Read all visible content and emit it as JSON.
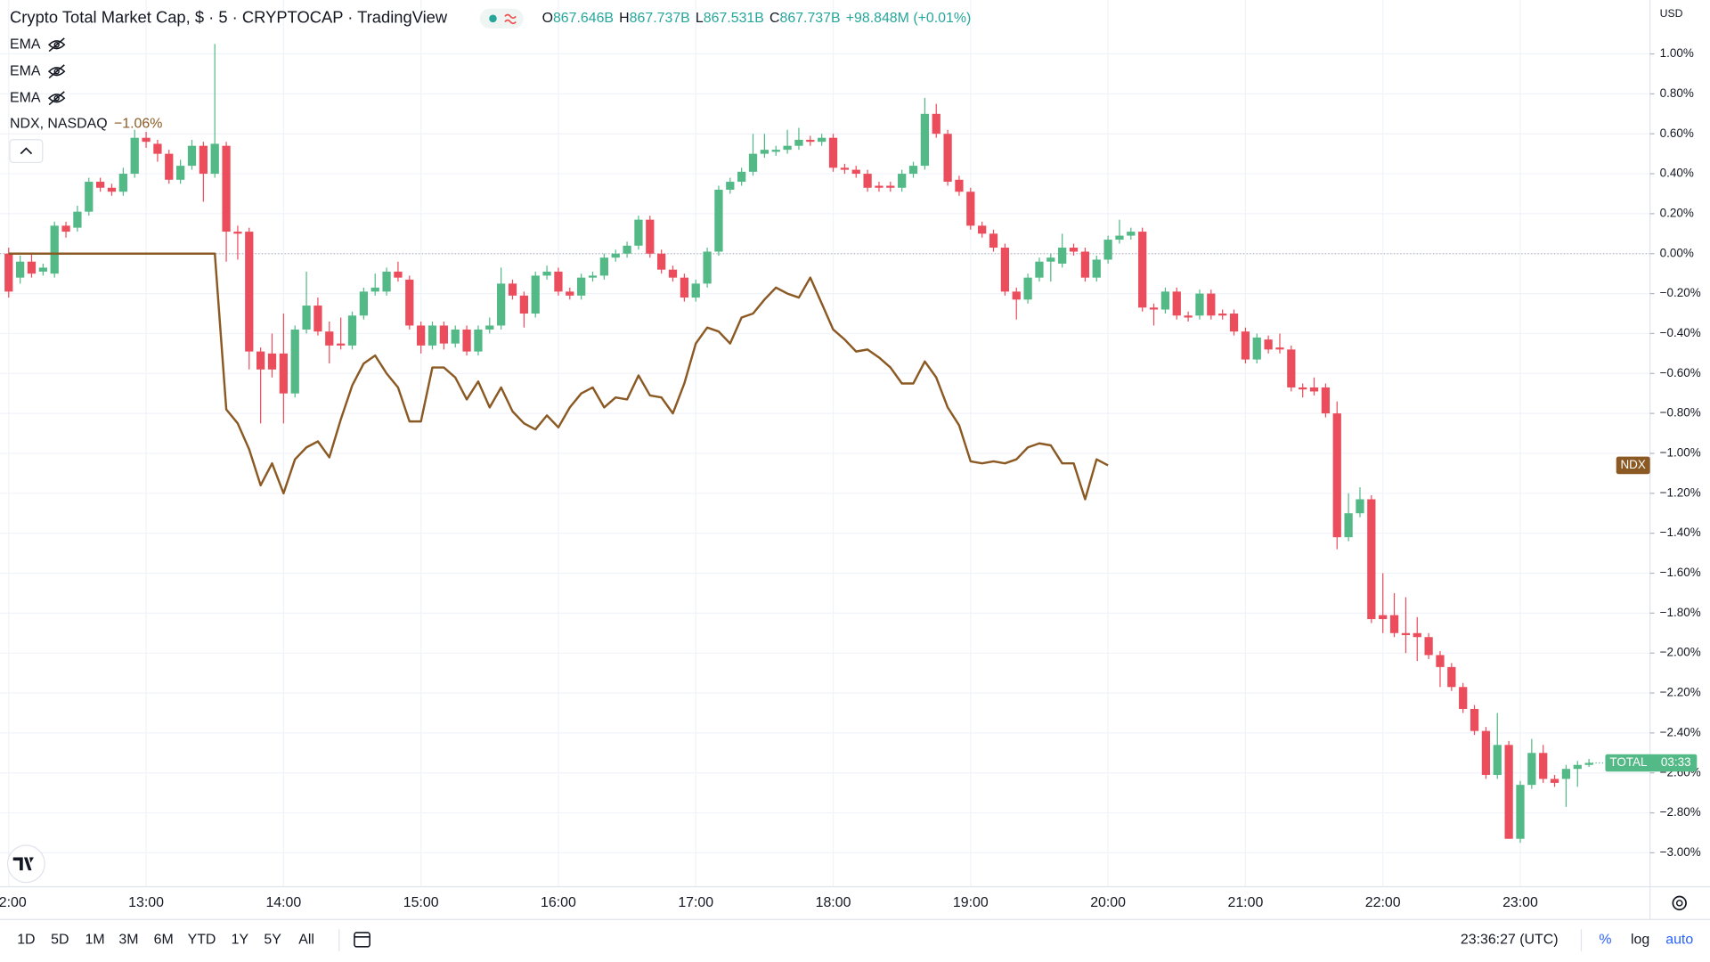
{
  "header": {
    "title": "Crypto Total Market Cap, $ · 5 · CRYPTOCAP · TradingView",
    "ohlc": [
      {
        "label": "O",
        "value": "867.646B"
      },
      {
        "label": "H",
        "value": "867.737B"
      },
      {
        "label": "L",
        "value": "867.531B"
      },
      {
        "label": "C",
        "value": "867.737B"
      }
    ],
    "change": "+98.848M (+0.01%)"
  },
  "indicators": [
    "EMA",
    "EMA",
    "EMA"
  ],
  "compare": {
    "name": "NDX, NASDAQ",
    "change": "−1.06%"
  },
  "chart_data": {
    "type": "candlestick",
    "name": "TOTAL",
    "countdown": "03:33",
    "currency": "USD",
    "up_color": "#53b987",
    "down_color": "#eb4d5c",
    "grid": true,
    "open": [
      0,
      -0.12,
      -0.04,
      -0.09,
      -0.1,
      0.14,
      0.13,
      0.21,
      0.36,
      0.33,
      0.31,
      0.4,
      0.58,
      0.55,
      0.5,
      0.37,
      0.44,
      0.54,
      0.4,
      0.54,
      0.11,
      0.11,
      -0.49,
      -0.5,
      -0.5,
      -0.7,
      -0.38,
      -0.26,
      -0.39,
      -0.45,
      -0.46,
      -0.31,
      -0.19,
      -0.19,
      -0.09,
      -0.13,
      -0.36,
      -0.46,
      -0.36,
      -0.45,
      -0.38,
      -0.49,
      -0.38,
      -0.36,
      -0.15,
      -0.21,
      -0.3,
      -0.11,
      -0.09,
      -0.19,
      -0.21,
      -0.12,
      -0.11,
      -0.02,
      0.0,
      0.04,
      0.17,
      0.0,
      -0.08,
      -0.12,
      -0.22,
      -0.15,
      0.01,
      0.32,
      0.36,
      0.41,
      0.5,
      0.51,
      0.52,
      0.54,
      0.57,
      0.56,
      0.58,
      0.43,
      0.42,
      0.4,
      0.34,
      0.34,
      0.33,
      0.4,
      0.44,
      0.7,
      0.6,
      0.37,
      0.31,
      0.14,
      0.1,
      0.03,
      -0.19,
      -0.23,
      -0.12,
      -0.04,
      -0.05,
      0.03,
      0.01,
      -0.12,
      -0.03,
      0.07,
      0.09,
      0.11,
      -0.27,
      -0.28,
      -0.19,
      -0.31,
      -0.31,
      -0.2,
      -0.3,
      -0.3,
      -0.39,
      -0.53,
      -0.43,
      -0.47,
      -0.48,
      -0.67,
      -0.67,
      -0.67,
      -0.8,
      -1.42,
      -1.3,
      -1.23,
      -1.81,
      -1.81,
      -1.9,
      -1.9,
      -1.92,
      -2.01,
      -2.07,
      -2.17,
      -2.28,
      -2.39,
      -2.61,
      -2.46,
      -2.93,
      -2.66,
      -2.5,
      -2.63,
      -2.63,
      -2.58,
      -2.56
    ],
    "high": [
      0.03,
      -0.01,
      0.0,
      -0.05,
      0.16,
      0.16,
      0.24,
      0.38,
      0.38,
      0.35,
      0.43,
      0.62,
      0.61,
      0.57,
      0.52,
      0.47,
      0.57,
      0.56,
      1.05,
      0.56,
      0.14,
      0.13,
      -0.47,
      -0.4,
      -0.3,
      -0.36,
      -0.09,
      -0.22,
      -0.34,
      -0.32,
      -0.29,
      -0.17,
      -0.1,
      -0.07,
      -0.04,
      -0.11,
      -0.34,
      -0.34,
      -0.34,
      -0.36,
      -0.36,
      -0.36,
      -0.32,
      -0.07,
      -0.13,
      -0.19,
      -0.09,
      -0.06,
      -0.07,
      -0.17,
      -0.1,
      -0.09,
      0.0,
      0.02,
      0.06,
      0.19,
      0.19,
      0.02,
      -0.06,
      -0.1,
      -0.13,
      0.03,
      0.34,
      0.38,
      0.43,
      0.6,
      0.6,
      0.54,
      0.62,
      0.63,
      0.59,
      0.6,
      0.6,
      0.45,
      0.44,
      0.42,
      0.36,
      0.36,
      0.42,
      0.46,
      0.78,
      0.75,
      0.62,
      0.39,
      0.33,
      0.16,
      0.12,
      0.05,
      -0.17,
      -0.1,
      -0.02,
      0.0,
      0.1,
      0.05,
      0.03,
      -0.01,
      0.09,
      0.17,
      0.13,
      0.13,
      -0.25,
      -0.17,
      -0.17,
      -0.29,
      -0.18,
      -0.18,
      -0.28,
      -0.28,
      -0.37,
      -0.4,
      -0.41,
      -0.4,
      -0.46,
      -0.65,
      -0.62,
      -0.65,
      -0.74,
      -1.2,
      -1.17,
      -1.21,
      -1.6,
      -1.7,
      -1.72,
      -1.82,
      -1.9,
      -1.99,
      -2.05,
      -2.15,
      -2.26,
      -2.37,
      -2.3,
      -2.44,
      -2.64,
      -2.43,
      -2.46,
      -2.61,
      -2.56,
      -2.54,
      -2.53
    ],
    "low": [
      -0.22,
      -0.15,
      -0.12,
      -0.11,
      -0.12,
      0.08,
      0.11,
      0.19,
      0.31,
      0.29,
      0.29,
      0.38,
      0.53,
      0.46,
      0.35,
      0.35,
      0.42,
      0.26,
      0.38,
      -0.04,
      -0.03,
      -0.58,
      -0.85,
      -0.62,
      -0.85,
      -0.72,
      -0.4,
      -0.41,
      -0.55,
      -0.48,
      -0.48,
      -0.33,
      -0.21,
      -0.21,
      -0.14,
      -0.38,
      -0.5,
      -0.48,
      -0.48,
      -0.47,
      -0.51,
      -0.51,
      -0.4,
      -0.38,
      -0.23,
      -0.37,
      -0.32,
      -0.13,
      -0.21,
      -0.23,
      -0.23,
      -0.14,
      -0.13,
      -0.04,
      -0.02,
      0.02,
      -0.02,
      -0.1,
      -0.14,
      -0.24,
      -0.24,
      -0.17,
      -0.01,
      0.3,
      0.34,
      0.39,
      0.48,
      0.49,
      0.5,
      0.52,
      0.54,
      0.54,
      0.41,
      0.4,
      0.38,
      0.31,
      0.31,
      0.31,
      0.31,
      0.38,
      0.42,
      0.58,
      0.34,
      0.29,
      0.12,
      0.08,
      0.01,
      -0.21,
      -0.33,
      -0.25,
      -0.14,
      -0.14,
      -0.07,
      -0.01,
      -0.14,
      -0.14,
      -0.05,
      0.05,
      0.07,
      -0.29,
      -0.36,
      -0.3,
      -0.33,
      -0.34,
      -0.33,
      -0.33,
      -0.33,
      -0.41,
      -0.55,
      -0.55,
      -0.5,
      -0.5,
      -0.69,
      -0.72,
      -0.71,
      -0.82,
      -1.48,
      -1.44,
      -1.32,
      -1.85,
      -1.9,
      -1.92,
      -2.0,
      -2.04,
      -2.03,
      -2.17,
      -2.19,
      -2.3,
      -2.41,
      -2.63,
      -2.63,
      -2.93,
      -2.95,
      -2.68,
      -2.65,
      -2.67,
      -2.77,
      -2.67,
      -2.57
    ],
    "close": [
      -0.19,
      -0.04,
      -0.1,
      -0.07,
      0.14,
      0.11,
      0.21,
      0.36,
      0.33,
      0.31,
      0.4,
      0.58,
      0.56,
      0.5,
      0.37,
      0.44,
      0.54,
      0.4,
      0.55,
      0.11,
      0.1,
      -0.49,
      -0.58,
      -0.58,
      -0.7,
      -0.38,
      -0.26,
      -0.39,
      -0.46,
      -0.46,
      -0.31,
      -0.19,
      -0.17,
      -0.09,
      -0.12,
      -0.36,
      -0.46,
      -0.36,
      -0.45,
      -0.38,
      -0.49,
      -0.38,
      -0.36,
      -0.15,
      -0.21,
      -0.3,
      -0.11,
      -0.09,
      -0.19,
      -0.21,
      -0.12,
      -0.11,
      -0.02,
      0.0,
      0.04,
      0.17,
      0.0,
      -0.08,
      -0.12,
      -0.22,
      -0.15,
      0.01,
      0.32,
      0.36,
      0.41,
      0.5,
      0.52,
      0.52,
      0.54,
      0.57,
      0.56,
      0.58,
      0.43,
      0.42,
      0.4,
      0.33,
      0.33,
      0.33,
      0.4,
      0.44,
      0.7,
      0.6,
      0.36,
      0.31,
      0.14,
      0.1,
      0.03,
      -0.19,
      -0.23,
      -0.12,
      -0.04,
      -0.02,
      0.03,
      0.01,
      -0.12,
      -0.03,
      0.07,
      0.09,
      0.11,
      -0.27,
      -0.28,
      -0.19,
      -0.31,
      -0.32,
      -0.2,
      -0.31,
      -0.31,
      -0.39,
      -0.53,
      -0.42,
      -0.48,
      -0.48,
      -0.67,
      -0.68,
      -0.69,
      -0.8,
      -1.42,
      -1.3,
      -1.23,
      -1.83,
      -1.83,
      -1.9,
      -1.91,
      -1.92,
      -2.01,
      -2.07,
      -2.17,
      -2.28,
      -2.39,
      -2.61,
      -2.46,
      -2.93,
      -2.66,
      -2.5,
      -2.63,
      -2.65,
      -2.58,
      -2.56,
      -2.55
    ],
    "series": [
      {
        "name": "NDX",
        "color": "#8b5a24",
        "values": [
          0,
          0,
          0,
          0,
          0,
          0,
          0,
          0,
          0,
          0,
          0,
          0,
          0,
          0,
          0,
          0,
          0,
          0,
          0,
          -0.78,
          -0.85,
          -0.98,
          -1.16,
          -1.05,
          -1.2,
          -1.03,
          -0.97,
          -0.94,
          -1.02,
          -0.83,
          -0.66,
          -0.55,
          -0.51,
          -0.6,
          -0.67,
          -0.84,
          -0.84,
          -0.57,
          -0.57,
          -0.62,
          -0.73,
          -0.64,
          -0.77,
          -0.67,
          -0.79,
          -0.85,
          -0.88,
          -0.81,
          -0.87,
          -0.77,
          -0.7,
          -0.67,
          -0.77,
          -0.72,
          -0.73,
          -0.61,
          -0.71,
          -0.72,
          -0.8,
          -0.65,
          -0.45,
          -0.37,
          -0.39,
          -0.45,
          -0.32,
          -0.3,
          -0.23,
          -0.17,
          -0.2,
          -0.22,
          -0.12,
          -0.25,
          -0.38,
          -0.43,
          -0.49,
          -0.48,
          -0.52,
          -0.57,
          -0.65,
          -0.65,
          -0.54,
          -0.62,
          -0.77,
          -0.86,
          -1.04,
          -1.05,
          -1.04,
          -1.05,
          -1.03,
          -0.97,
          -0.95,
          -0.96,
          -1.05,
          -1.05,
          -1.23,
          -1.03,
          -1.06,
          null,
          null,
          null,
          null,
          null,
          null,
          null,
          null,
          null,
          null,
          null,
          null,
          null,
          null,
          null,
          null,
          null,
          null,
          null,
          null,
          null,
          null,
          null,
          null,
          null,
          null,
          null,
          null,
          null,
          null,
          null,
          null,
          null,
          null,
          null,
          null,
          null,
          null,
          null,
          null,
          null,
          null
        ]
      }
    ],
    "xlim": [
      -0.76,
      143.33
    ],
    "xticks": [
      {
        "value": 0,
        "label": "12:00"
      },
      {
        "value": 12,
        "label": "13:00"
      },
      {
        "value": 24,
        "label": "14:00"
      },
      {
        "value": 36,
        "label": "15:00"
      },
      {
        "value": 48,
        "label": "16:00"
      },
      {
        "value": 60,
        "label": "17:00"
      },
      {
        "value": 72,
        "label": "18:00"
      },
      {
        "value": 84,
        "label": "19:00"
      },
      {
        "value": 96,
        "label": "20:00"
      },
      {
        "value": 108,
        "label": "21:00"
      },
      {
        "value": 120,
        "label": "22:00"
      },
      {
        "value": 132,
        "label": "23:00"
      }
    ],
    "ylim": [
      -3.17,
      1.27
    ],
    "yticks": [
      {
        "value": 1,
        "label": "1.00%"
      },
      {
        "value": 0.8,
        "label": "0.80%"
      },
      {
        "value": 0.6,
        "label": "0.60%"
      },
      {
        "value": 0.4,
        "label": "0.40%"
      },
      {
        "value": 0.2,
        "label": "0.20%"
      },
      {
        "value": 0,
        "label": "0.00%"
      },
      {
        "value": -0.2,
        "label": "−0.20%"
      },
      {
        "value": -0.4,
        "label": "−0.40%"
      },
      {
        "value": -0.6,
        "label": "−0.60%"
      },
      {
        "value": -0.8,
        "label": "−0.80%"
      },
      {
        "value": -1,
        "label": "−1.00%"
      },
      {
        "value": -1.2,
        "label": "−1.20%"
      },
      {
        "value": -1.4,
        "label": "−1.40%"
      },
      {
        "value": -1.6,
        "label": "−1.60%"
      },
      {
        "value": -1.8,
        "label": "−1.80%"
      },
      {
        "value": -2,
        "label": "−2.00%"
      },
      {
        "value": -2.2,
        "label": "−2.20%"
      },
      {
        "value": -2.4,
        "label": "−2.40%"
      },
      {
        "value": -2.6,
        "label": "−2.60%"
      },
      {
        "value": -2.8,
        "label": "−2.80%"
      },
      {
        "value": -3,
        "label": "−3.00%"
      }
    ]
  },
  "toolbar": {
    "ranges": [
      "1D",
      "5D",
      "1M",
      "3M",
      "6M",
      "YTD",
      "1Y",
      "5Y",
      "All"
    ],
    "clock": "23:36:27 (UTC)",
    "scale_options": [
      "%",
      "log",
      "auto"
    ]
  }
}
